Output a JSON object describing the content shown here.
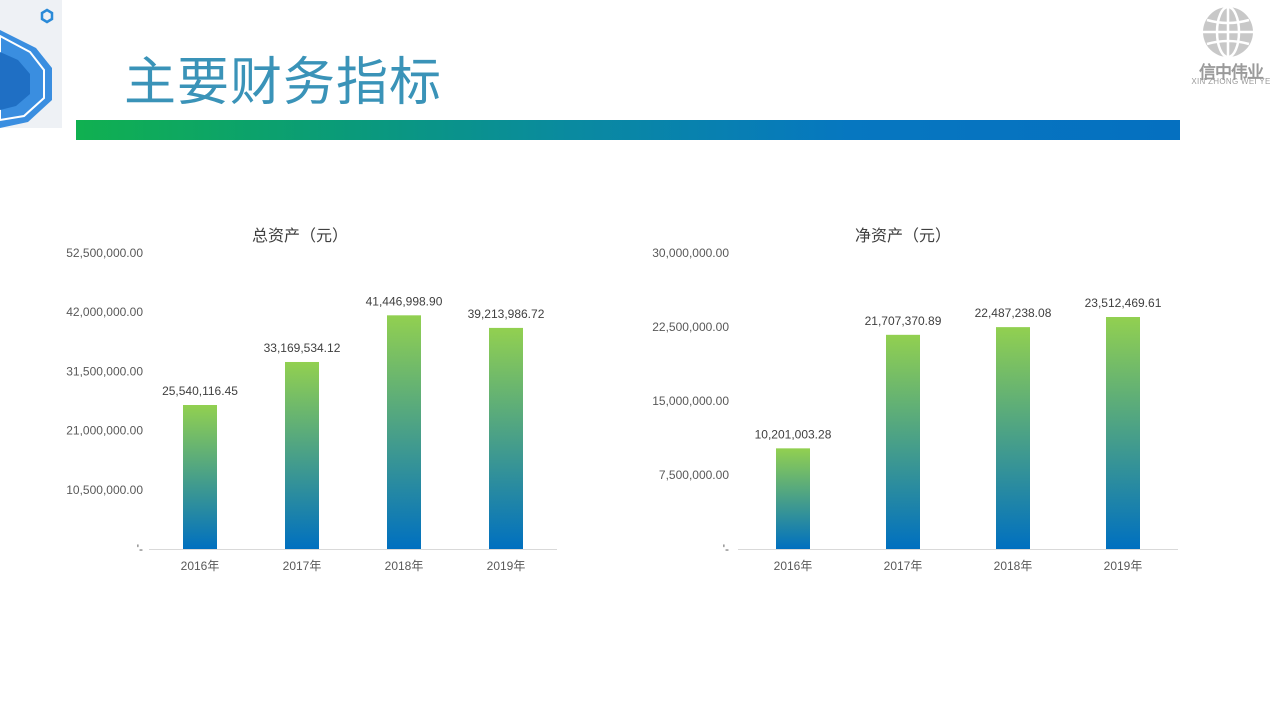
{
  "slide": {
    "title": "主要财务指标",
    "logo_text": "信中伟业",
    "logo_sub": "XIN ZHONG WEI YE"
  },
  "colors": {
    "title": "#3a93b8",
    "bar_top": "#92d050",
    "bar_bottom": "#0070c0"
  },
  "chart_data": [
    {
      "type": "bar",
      "title": "总资产（元）",
      "categories": [
        "2016年",
        "2017年",
        "2018年",
        "2019年"
      ],
      "values": [
        25540116.45,
        33169534.12,
        41446998.9,
        39213986.72
      ],
      "data_labels": [
        "25,540,116.45",
        "33,169,534.12",
        "41,446,998.90",
        "39,213,986.72"
      ],
      "ylim": [
        0,
        52500000
      ],
      "y_ticks": [
        0,
        10500000,
        21000000,
        31500000,
        42000000,
        52500000
      ],
      "y_tick_labels": [
        "'-",
        "10,500,000.00",
        "21,000,000.00",
        "31,500,000.00",
        "42,000,000.00",
        "52,500,000.00"
      ],
      "grid": false
    },
    {
      "type": "bar",
      "title": "净资产（元）",
      "categories": [
        "2016年",
        "2017年",
        "2018年",
        "2019年"
      ],
      "values": [
        10201003.28,
        21707370.89,
        22487238.08,
        23512469.61
      ],
      "data_labels": [
        "10,201,003.28",
        "21,707,370.89",
        "22,487,238.08",
        "23,512,469.61"
      ],
      "ylim": [
        0,
        30000000
      ],
      "y_ticks": [
        0,
        7500000,
        15000000,
        22500000,
        30000000
      ],
      "y_tick_labels": [
        "'-",
        "7,500,000.00",
        "15,000,000.00",
        "22,500,000.00",
        "30,000,000.00"
      ],
      "grid": false
    }
  ]
}
